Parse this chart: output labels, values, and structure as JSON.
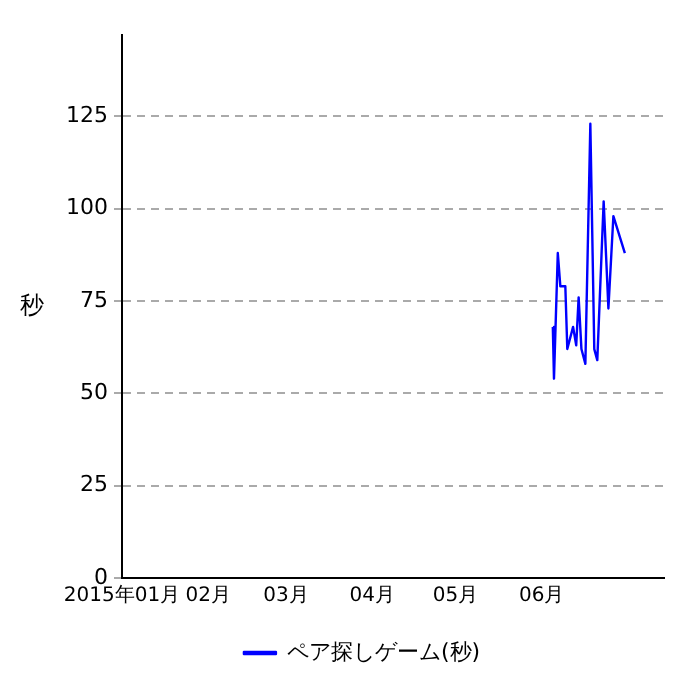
{
  "chart_data": {
    "type": "line",
    "ylabel": "秒",
    "series": [
      {
        "name": "ペア探しゲーム(秒)",
        "color": "#0000ff",
        "x": [
          "2015-06-05T00:00",
          "2015-06-05T10:00",
          "2015-06-06T19:00",
          "2015-06-07T17:00",
          "2015-06-09T12:00",
          "2015-06-10T05:00",
          "2015-06-12T07:00",
          "2015-06-13T10:00",
          "2015-06-14T07:00",
          "2015-06-15T07:00",
          "2015-06-16T17:00",
          "2015-06-18T12:00",
          "2015-06-19T22:00",
          "2015-06-21T00:00",
          "2015-06-23T07:00",
          "2015-06-25T00:00",
          "2015-06-26T19:00",
          "2015-06-30T22:00"
        ],
        "values": [
          68,
          54,
          88,
          79,
          79,
          62,
          68,
          63,
          76,
          62,
          58,
          123,
          62,
          59,
          102,
          73,
          98,
          88
        ]
      }
    ],
    "xlim": [
      "2015-01-01T00:00",
      "2015-07-15T00:00"
    ],
    "xticks": [
      {
        "value": "2015-01-01T00:00",
        "label": "2015年01月"
      },
      {
        "value": "2015-02-01T00:00",
        "label": "02月"
      },
      {
        "value": "2015-03-01T00:00",
        "label": "03月"
      },
      {
        "value": "2015-04-01T00:00",
        "label": "04月"
      },
      {
        "value": "2015-05-01T00:00",
        "label": "05月"
      },
      {
        "value": "2015-06-01T00:00",
        "label": "06月"
      }
    ],
    "ylim": [
      0,
      147
    ],
    "yticks": [
      0,
      25,
      50,
      75,
      100,
      125
    ],
    "grid": "y",
    "legend": "bottom",
    "marker": "none",
    "line_style": "solid"
  }
}
